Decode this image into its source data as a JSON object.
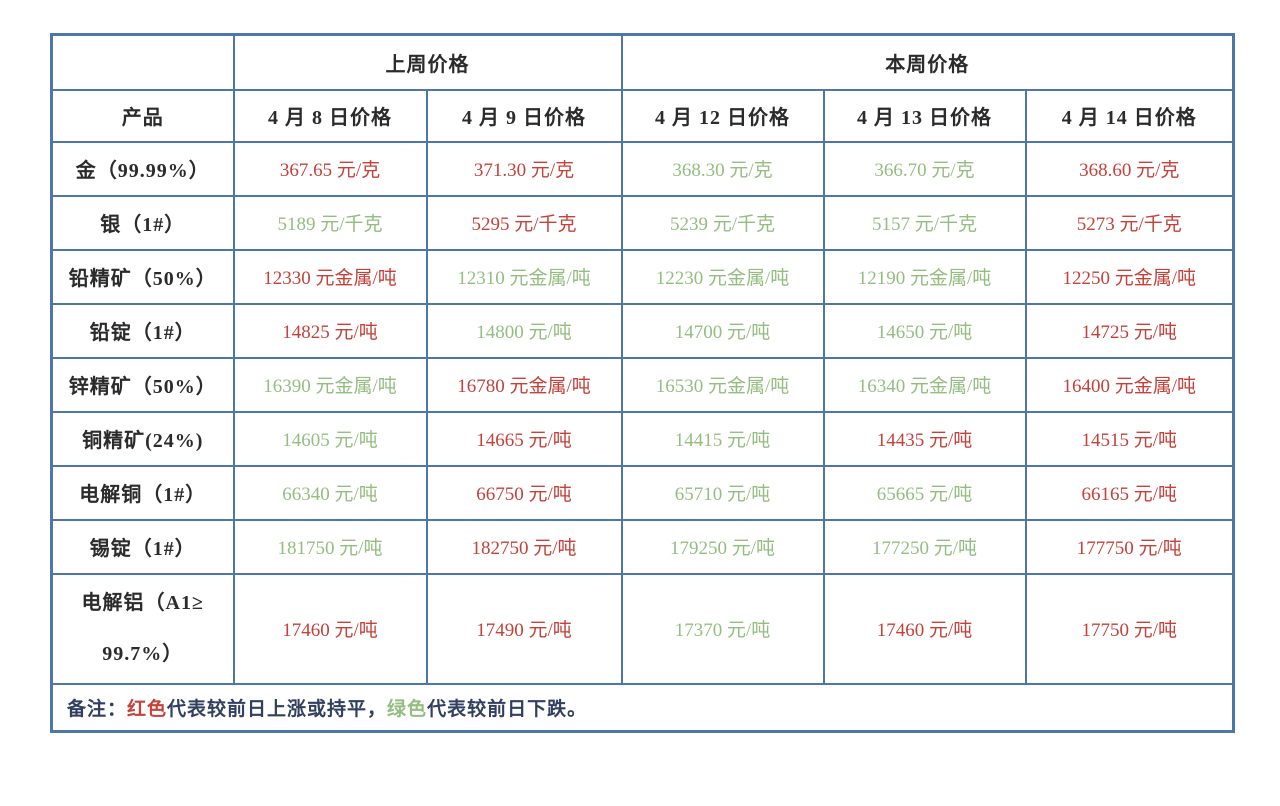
{
  "colors": {
    "red_up": "#c5413a",
    "green_down": "#94bd80",
    "border_blue": "#4d77ab",
    "header_text": "#2b2b2b",
    "note_text": "#31405f"
  },
  "table": {
    "group_headers": [
      {
        "label": "上周价格",
        "span": 2
      },
      {
        "label": "本周价格",
        "span": 3
      }
    ],
    "columns": [
      "产品",
      "4 月 8 日价格",
      "4 月 9 日价格",
      "4 月 12 日价格",
      "4 月 13 日价格",
      "4 月 14 日价格"
    ],
    "rows": [
      {
        "product": "金（99.99%）",
        "cells": [
          {
            "text": "367.65 元/克",
            "trend": "up"
          },
          {
            "text": "371.30 元/克",
            "trend": "up"
          },
          {
            "text": "368.30 元/克",
            "trend": "down"
          },
          {
            "text": "366.70 元/克",
            "trend": "down"
          },
          {
            "text": "368.60 元/克",
            "trend": "up"
          }
        ]
      },
      {
        "product": "银（1#）",
        "cells": [
          {
            "text": "5189 元/千克",
            "trend": "down"
          },
          {
            "text": "5295 元/千克",
            "trend": "up"
          },
          {
            "text": "5239 元/千克",
            "trend": "down"
          },
          {
            "text": "5157 元/千克",
            "trend": "down"
          },
          {
            "text": "5273 元/千克",
            "trend": "up"
          }
        ]
      },
      {
        "product": "铅精矿（50%）",
        "cells": [
          {
            "text": "12330 元金属/吨",
            "trend": "up"
          },
          {
            "text": "12310 元金属/吨",
            "trend": "down"
          },
          {
            "text": "12230 元金属/吨",
            "trend": "down"
          },
          {
            "text": "12190 元金属/吨",
            "trend": "down"
          },
          {
            "text": "12250 元金属/吨",
            "trend": "up"
          }
        ]
      },
      {
        "product": "铅锭（1#）",
        "cells": [
          {
            "text": "14825 元/吨",
            "trend": "up"
          },
          {
            "text": "14800 元/吨",
            "trend": "down"
          },
          {
            "text": "14700 元/吨",
            "trend": "down"
          },
          {
            "text": "14650 元/吨",
            "trend": "down"
          },
          {
            "text": "14725 元/吨",
            "trend": "up"
          }
        ]
      },
      {
        "product": "锌精矿（50%）",
        "cells": [
          {
            "text": "16390 元金属/吨",
            "trend": "down"
          },
          {
            "text": "16780 元金属/吨",
            "trend": "up"
          },
          {
            "text": "16530 元金属/吨",
            "trend": "down"
          },
          {
            "text": "16340 元金属/吨",
            "trend": "down"
          },
          {
            "text": "16400 元金属/吨",
            "trend": "up"
          }
        ]
      },
      {
        "product": "铜精矿(24%)",
        "cells": [
          {
            "text": "14605 元/吨",
            "trend": "down"
          },
          {
            "text": "14665 元/吨",
            "trend": "up"
          },
          {
            "text": "14415 元/吨",
            "trend": "down"
          },
          {
            "text": "14435 元/吨",
            "trend": "up"
          },
          {
            "text": "14515 元/吨",
            "trend": "up"
          }
        ]
      },
      {
        "product": "电解铜（1#）",
        "cells": [
          {
            "text": "66340 元/吨",
            "trend": "down"
          },
          {
            "text": "66750 元/吨",
            "trend": "up"
          },
          {
            "text": "65710 元/吨",
            "trend": "down"
          },
          {
            "text": "65665 元/吨",
            "trend": "down"
          },
          {
            "text": "66165 元/吨",
            "trend": "up"
          }
        ]
      },
      {
        "product": "锡锭（1#）",
        "cells": [
          {
            "text": "181750 元/吨",
            "trend": "down"
          },
          {
            "text": "182750 元/吨",
            "trend": "up"
          },
          {
            "text": "179250 元/吨",
            "trend": "down"
          },
          {
            "text": "177250 元/吨",
            "trend": "down"
          },
          {
            "text": "177750 元/吨",
            "trend": "up"
          }
        ]
      },
      {
        "product": "电解铝（A1≥ 99.7%）",
        "tall": true,
        "cells": [
          {
            "text": "17460 元/吨",
            "trend": "up"
          },
          {
            "text": "17490 元/吨",
            "trend": "up"
          },
          {
            "text": "17370 元/吨",
            "trend": "down"
          },
          {
            "text": "17460 元/吨",
            "trend": "up"
          },
          {
            "text": "17750 元/吨",
            "trend": "up"
          }
        ]
      }
    ],
    "note": {
      "segments": [
        {
          "text": "备注："
        },
        {
          "text": "红色",
          "trend": "up"
        },
        {
          "text": "代表较前日上涨或持平，"
        },
        {
          "text": "绿色",
          "trend": "down"
        },
        {
          "text": "代表较前日下跌。"
        }
      ]
    }
  }
}
